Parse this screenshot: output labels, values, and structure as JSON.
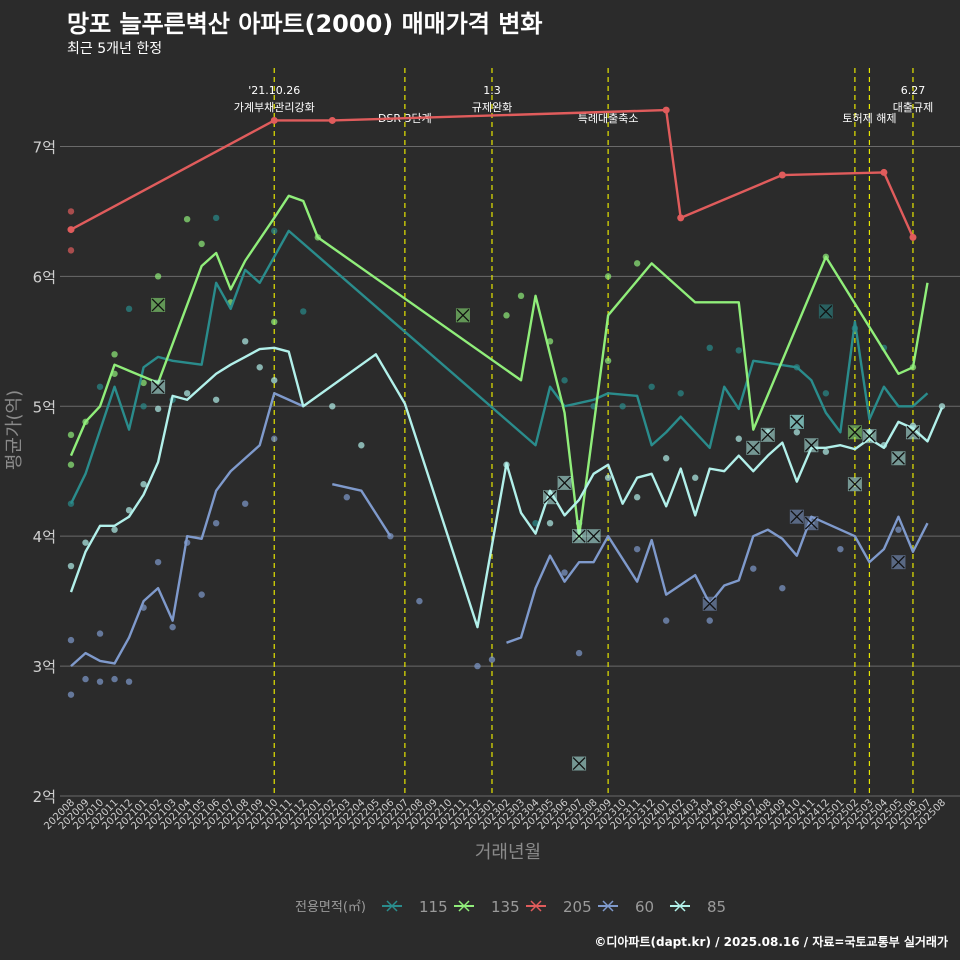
{
  "title": "망포 늘푸른벽산 아파트(2000) 매매가격 변화",
  "subtitle": "최근 5개년 한정",
  "caption": "©디아파트(dapt.kr) / 2025.08.16 / 자료=국토교통부 실거래가",
  "chart_data": {
    "type": "line",
    "xlabel": "거래년월",
    "ylabel": "평균가(억)",
    "ylim": [
      2,
      7.65
    ],
    "y_ticks": [
      {
        "value": 2,
        "label": "2억"
      },
      {
        "value": 3,
        "label": "3억"
      },
      {
        "value": 4,
        "label": "4억"
      },
      {
        "value": 5,
        "label": "5억"
      },
      {
        "value": 6,
        "label": "6억"
      },
      {
        "value": 7,
        "label": "7억"
      }
    ],
    "x_categories": [
      "202008",
      "202009",
      "202010",
      "202011",
      "202012",
      "202101",
      "202102",
      "202103",
      "202104",
      "202105",
      "202106",
      "202107",
      "202108",
      "202109",
      "202110",
      "202111",
      "202112",
      "202201",
      "202202",
      "202203",
      "202204",
      "202205",
      "202206",
      "202207",
      "202208",
      "202209",
      "202210",
      "202211",
      "202212",
      "202301",
      "202302",
      "202303",
      "202304",
      "202305",
      "202306",
      "202307",
      "202308",
      "202309",
      "202310",
      "202311",
      "202312",
      "202401",
      "202402",
      "202403",
      "202404",
      "202405",
      "202406",
      "202407",
      "202408",
      "202409",
      "202410",
      "202411",
      "202412",
      "202501",
      "202502",
      "202503",
      "202504",
      "202505",
      "202506",
      "202507",
      "202508"
    ],
    "grid": true,
    "legend": {
      "title": "전용면적(㎡)",
      "position": "bottom"
    },
    "events": [
      {
        "month": "202110",
        "label": "'21.10.26\n가계부채관리강화"
      },
      {
        "month": "202207",
        "label": "DSR 3단계"
      },
      {
        "month": "202301",
        "label": "1.3\n규제완화"
      },
      {
        "month": "202309",
        "label": "특례대출축소"
      },
      {
        "month": "202502",
        "label": ""
      },
      {
        "month": "202503",
        "label": "토허제 해제"
      },
      {
        "month": "202506",
        "label": "6.27\n대출규제"
      }
    ],
    "series": [
      {
        "name": "115",
        "color": "#2a8c8c",
        "x": [
          "202008",
          "202009",
          "202011",
          "202012",
          "202101",
          "202102",
          "202103",
          "202105",
          "202106",
          "202107",
          "202108",
          "202109",
          "202111",
          "202304",
          "202305",
          "202306",
          "202308",
          "202309",
          "202311",
          "202312",
          "202401",
          "202402",
          "202404",
          "202405",
          "202406",
          "202407",
          "202410",
          "202411",
          "202412",
          "202501",
          "202502",
          "202503",
          "202504",
          "202505",
          "202506",
          "202507"
        ],
        "values": [
          4.25,
          4.48,
          5.15,
          4.82,
          5.3,
          5.38,
          5.35,
          5.32,
          5.95,
          5.75,
          6.05,
          5.95,
          6.35,
          4.7,
          5.15,
          5.0,
          5.05,
          5.1,
          5.08,
          4.7,
          4.8,
          4.92,
          4.68,
          5.15,
          4.98,
          5.35,
          5.3,
          5.2,
          4.95,
          4.8,
          5.65,
          4.9,
          5.15,
          5.0,
          5.0,
          5.1
        ],
        "points": [
          [
            0,
            4.25
          ],
          [
            2,
            5.15
          ],
          [
            4,
            5.75
          ],
          [
            5,
            5.0
          ],
          [
            7,
            5.05
          ],
          [
            10,
            6.45
          ],
          [
            14,
            6.35
          ],
          [
            16,
            5.73
          ],
          [
            32,
            4.1
          ],
          [
            34,
            5.2
          ],
          [
            36,
            5.0
          ],
          [
            38,
            5.0
          ],
          [
            40,
            5.15
          ],
          [
            42,
            5.1
          ],
          [
            44,
            5.45
          ],
          [
            46,
            5.43
          ],
          [
            50,
            5.3
          ],
          [
            52,
            5.1
          ],
          [
            54,
            5.6
          ],
          [
            56,
            5.45
          ]
        ],
        "marker_x": [
          [
            52,
            5.73
          ],
          [
            50,
            4.88
          ]
        ]
      },
      {
        "name": "135",
        "color": "#90ee7a",
        "x": [
          "202008",
          "202009",
          "202010",
          "202011",
          "202102",
          "202105",
          "202106",
          "202107",
          "202108",
          "202110",
          "202111",
          "202112",
          "202201",
          "202303",
          "202304",
          "202306",
          "202307",
          "202309",
          "202312",
          "202403",
          "202405",
          "202406",
          "202407",
          "202412",
          "202505",
          "202506",
          "202507"
        ],
        "values": [
          4.62,
          4.88,
          5.0,
          5.32,
          5.18,
          6.08,
          6.18,
          5.9,
          6.12,
          6.45,
          6.62,
          6.58,
          6.3,
          5.2,
          5.85,
          4.95,
          4.0,
          5.7,
          6.1,
          5.8,
          5.8,
          5.8,
          4.82,
          6.15,
          5.25,
          5.3,
          5.95
        ],
        "points": [
          [
            0,
            4.78
          ],
          [
            0,
            4.55
          ],
          [
            1,
            4.88
          ],
          [
            3,
            5.4
          ],
          [
            3,
            5.25
          ],
          [
            5,
            5.18
          ],
          [
            6,
            6.0
          ],
          [
            8,
            6.44
          ],
          [
            9,
            6.25
          ],
          [
            11,
            5.8
          ],
          [
            14,
            5.65
          ],
          [
            17,
            6.3
          ],
          [
            30,
            5.7
          ],
          [
            31,
            5.85
          ],
          [
            33,
            5.5
          ],
          [
            35,
            4.0
          ],
          [
            37,
            6.0
          ],
          [
            37,
            5.35
          ],
          [
            39,
            6.1
          ],
          [
            52,
            6.15
          ],
          [
            55,
            4.78
          ],
          [
            58,
            5.3
          ]
        ],
        "marker_x": [
          [
            6,
            5.78
          ],
          [
            27,
            5.7
          ],
          [
            54,
            4.8
          ]
        ]
      },
      {
        "name": "205",
        "color": "#e05c5c",
        "x": [
          "202008",
          "202110",
          "202202",
          "202401",
          "202402",
          "202409",
          "202504",
          "202506"
        ],
        "values": [
          6.36,
          7.2,
          7.2,
          7.28,
          6.45,
          6.78,
          6.8,
          6.3
        ],
        "points": [
          [
            0,
            6.5
          ],
          [
            0,
            6.2
          ]
        ],
        "marker_x": []
      },
      {
        "name": "60",
        "color": "#7f9acc",
        "x": [
          "202008",
          "202009",
          "202010",
          "202011",
          "202012",
          "202101",
          "202102",
          "202103",
          "202104",
          "202105",
          "202106",
          "202107",
          "202108",
          "202109",
          "202110",
          "202111",
          "202112",
          "202202",
          "202204",
          "202206",
          "202208",
          "202302",
          "202303",
          "202304",
          "202305",
          "202306",
          "202307",
          "202308",
          "202309",
          "202311",
          "202312",
          "202401",
          "202403",
          "202404",
          "202405",
          "202406",
          "202407",
          "202408",
          "202409",
          "202410",
          "202411",
          "202412",
          "202501",
          "202502",
          "202503",
          "202504",
          "202505",
          "202506",
          "202507"
        ],
        "values": [
          3.0,
          3.1,
          3.04,
          3.02,
          3.22,
          3.5,
          3.6,
          3.35,
          4.0,
          3.98,
          4.35,
          4.5,
          4.6,
          4.7,
          5.1,
          5.05,
          5.0,
          4.4,
          4.35,
          4.0,
          3.5,
          3.18,
          3.22,
          3.6,
          3.85,
          3.65,
          3.8,
          3.8,
          4.0,
          3.65,
          3.97,
          3.55,
          3.7,
          3.48,
          3.62,
          3.66,
          4.0,
          4.05,
          3.98,
          3.85,
          4.15,
          4.1,
          4.05,
          4.0,
          3.8,
          3.9,
          4.15,
          3.88,
          4.1
        ],
        "gaps": [
          "202202",
          "202208",
          "202302"
        ],
        "points": [
          [
            0,
            2.78
          ],
          [
            0,
            3.2
          ],
          [
            1,
            2.9
          ],
          [
            2,
            2.88
          ],
          [
            2,
            3.25
          ],
          [
            3,
            2.9
          ],
          [
            4,
            2.88
          ],
          [
            5,
            3.45
          ],
          [
            6,
            3.8
          ],
          [
            7,
            3.3
          ],
          [
            8,
            3.95
          ],
          [
            9,
            3.55
          ],
          [
            10,
            4.1
          ],
          [
            12,
            4.25
          ],
          [
            14,
            4.75
          ],
          [
            19,
            4.3
          ],
          [
            22,
            4.0
          ],
          [
            24,
            3.5
          ],
          [
            28,
            3.0
          ],
          [
            29,
            3.05
          ],
          [
            34,
            3.72
          ],
          [
            35,
            3.1
          ],
          [
            39,
            3.9
          ],
          [
            41,
            3.35
          ],
          [
            44,
            3.35
          ],
          [
            47,
            3.75
          ],
          [
            49,
            3.6
          ],
          [
            51,
            4.1
          ],
          [
            53,
            3.9
          ],
          [
            57,
            4.05
          ]
        ],
        "marker_x": [
          [
            44,
            3.48
          ],
          [
            50,
            4.15
          ],
          [
            51,
            4.1
          ],
          [
            57,
            3.8
          ]
        ]
      },
      {
        "name": "85",
        "color": "#b2f0ea",
        "x": [
          "202008",
          "202009",
          "202010",
          "202011",
          "202012",
          "202101",
          "202102",
          "202103",
          "202104",
          "202105",
          "202106",
          "202107",
          "202108",
          "202109",
          "202110",
          "202111",
          "202112",
          "202205",
          "202207",
          "202212",
          "202302",
          "202303",
          "202304",
          "202305",
          "202306",
          "202307",
          "202308",
          "202309",
          "202310",
          "202311",
          "202312",
          "202401",
          "202402",
          "202403",
          "202404",
          "202405",
          "202406",
          "202407",
          "202408",
          "202409",
          "202410",
          "202411",
          "202412",
          "202501",
          "202502",
          "202503",
          "202504",
          "202505",
          "202506",
          "202507",
          "202508"
        ],
        "values": [
          3.57,
          3.88,
          4.08,
          4.08,
          4.15,
          4.32,
          4.57,
          5.08,
          5.05,
          5.15,
          5.25,
          5.32,
          5.38,
          5.44,
          5.45,
          5.42,
          5.0,
          5.4,
          5.02,
          3.3,
          4.56,
          4.18,
          4.02,
          4.35,
          4.16,
          4.28,
          4.48,
          4.55,
          4.25,
          4.45,
          4.48,
          4.23,
          4.52,
          4.16,
          4.52,
          4.5,
          4.62,
          4.5,
          4.62,
          4.72,
          4.42,
          4.68,
          4.68,
          4.7,
          4.67,
          4.75,
          4.68,
          4.88,
          4.83,
          4.73,
          4.99
        ],
        "points": [
          [
            0,
            3.77
          ],
          [
            1,
            3.95
          ],
          [
            3,
            4.05
          ],
          [
            4,
            4.2
          ],
          [
            5,
            4.4
          ],
          [
            6,
            4.98
          ],
          [
            8,
            5.1
          ],
          [
            10,
            5.05
          ],
          [
            12,
            5.5
          ],
          [
            13,
            5.3
          ],
          [
            14,
            5.2
          ],
          [
            18,
            5.0
          ],
          [
            20,
            4.7
          ],
          [
            30,
            4.55
          ],
          [
            33,
            4.1
          ],
          [
            35,
            4.1
          ],
          [
            37,
            4.45
          ],
          [
            39,
            4.3
          ],
          [
            41,
            4.6
          ],
          [
            43,
            4.45
          ],
          [
            46,
            4.75
          ],
          [
            48,
            4.8
          ],
          [
            50,
            4.8
          ],
          [
            52,
            4.65
          ],
          [
            55,
            4.8
          ],
          [
            56,
            4.7
          ],
          [
            58,
            4.85
          ],
          [
            60,
            5.0
          ]
        ],
        "marker_x": [
          [
            6,
            5.15
          ],
          [
            33,
            4.3
          ],
          [
            34,
            4.41
          ],
          [
            35,
            4.0
          ],
          [
            47,
            4.68
          ],
          [
            48,
            4.78
          ],
          [
            50,
            4.88
          ],
          [
            51,
            4.7
          ],
          [
            54,
            4.4
          ],
          [
            55,
            4.77
          ],
          [
            57,
            4.6
          ],
          [
            58,
            4.8
          ],
          [
            36,
            4.0
          ],
          [
            35,
            2.25
          ]
        ]
      }
    ]
  }
}
